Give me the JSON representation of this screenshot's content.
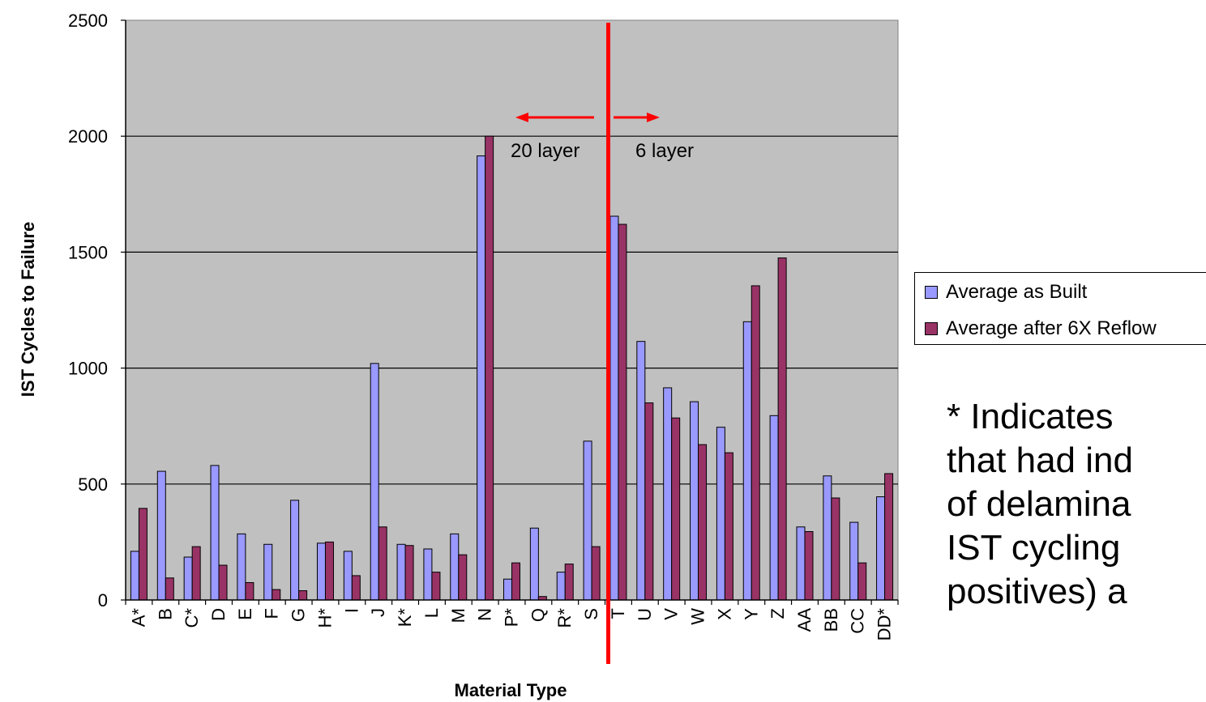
{
  "chart_data": {
    "type": "bar",
    "xlabel": "Material Type",
    "ylabel": "IST Cycles to Failure",
    "ylim": [
      0,
      2500
    ],
    "yticks": [
      0,
      500,
      1000,
      1500,
      2000,
      2500
    ],
    "grid": true,
    "legend_position": "right",
    "categories": [
      "A*",
      "B",
      "C*",
      "D",
      "E",
      "F",
      "G",
      "H*",
      "I",
      "J",
      "K*",
      "L",
      "M",
      "N",
      "P*",
      "Q",
      "R*",
      "S",
      "T",
      "U",
      "V",
      "W",
      "X",
      "Y",
      "Z",
      "AA",
      "BB",
      "CC",
      "DD*"
    ],
    "series": [
      {
        "name": "Average as Built",
        "color": "#9999ff",
        "values": [
          210,
          555,
          185,
          580,
          285,
          240,
          430,
          245,
          210,
          1020,
          240,
          220,
          285,
          1915,
          90,
          310,
          120,
          685,
          1655,
          1115,
          915,
          855,
          745,
          1200,
          795,
          315,
          535,
          335,
          445
        ]
      },
      {
        "name": "Average after 6X Reflow",
        "color": "#993366",
        "values": [
          395,
          95,
          230,
          150,
          75,
          45,
          40,
          250,
          105,
          315,
          235,
          120,
          195,
          2000,
          160,
          15,
          155,
          230,
          1620,
          850,
          785,
          670,
          635,
          1355,
          1475,
          295,
          440,
          160,
          545
        ]
      }
    ],
    "annotations": {
      "divider_after_category": "S",
      "divider_color": "#ff0000",
      "left_label": "20 layer",
      "right_label": "6 layer"
    }
  },
  "colors": {
    "plot_background": "#c0c0c0",
    "gridline": "#000000",
    "divider": "#ff0000"
  },
  "footnote": {
    "lines": [
      "* Indicates",
      "that had ind",
      "of delamina",
      "IST cycling",
      "positives) a"
    ]
  }
}
